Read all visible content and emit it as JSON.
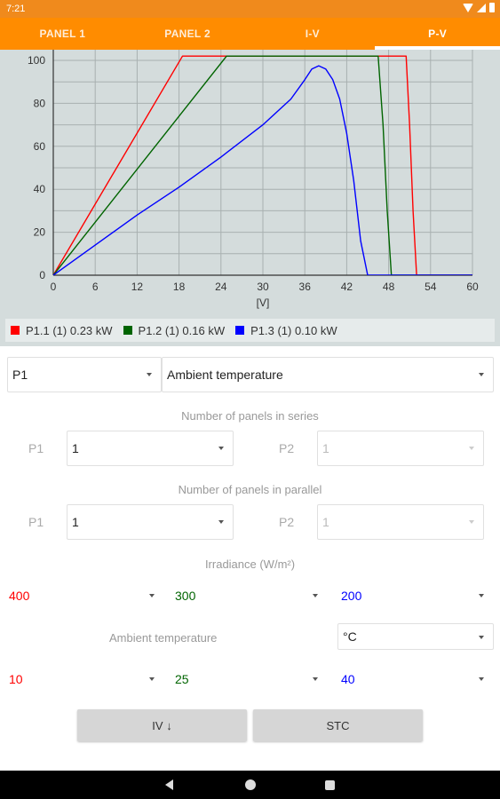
{
  "status": {
    "time": "7:21"
  },
  "tabs": [
    {
      "label": "PANEL 1"
    },
    {
      "label": "PANEL 2"
    },
    {
      "label": "I-V"
    },
    {
      "label": "P-V"
    }
  ],
  "active_tab": 3,
  "chart_data": {
    "type": "line",
    "xlabel": "[V]",
    "ylabel": "",
    "xlim": [
      0,
      60
    ],
    "ylim": [
      0,
      100
    ],
    "xticks": [
      "0",
      "6",
      "12",
      "18",
      "24",
      "30",
      "36",
      "42",
      "48",
      "54",
      "60"
    ],
    "yticks": [
      "0",
      "20",
      "40",
      "60",
      "80",
      "100"
    ],
    "grid": true,
    "legend_position": "bottom",
    "series": [
      {
        "name": "P1.1 (1) 0.23 kW",
        "color": "#ff0000",
        "x": [
          0,
          18.5,
          50.5,
          51.0,
          51.5,
          52.0,
          60
        ],
        "y": [
          0,
          102,
          102,
          70,
          30,
          0,
          0
        ]
      },
      {
        "name": "P1.2 (1) 0.16 kW",
        "color": "#006400",
        "x": [
          0,
          24.8,
          46.5,
          47.2,
          47.8,
          48.4,
          60
        ],
        "y": [
          0,
          102,
          102,
          70,
          30,
          0,
          0
        ]
      },
      {
        "name": "P1.3 (1) 0.10 kW",
        "color": "#0000ff",
        "x": [
          0,
          6,
          12,
          18,
          24,
          30,
          34,
          36,
          37,
          38,
          39,
          40,
          41,
          42,
          43,
          44,
          45,
          60
        ],
        "y": [
          0,
          14,
          28,
          41,
          55,
          70,
          82,
          91,
          96,
          97.5,
          96,
          91,
          82,
          66,
          44,
          16,
          0,
          0
        ]
      }
    ]
  },
  "legend": [
    {
      "label": "P1.1 (1) 0.23 kW",
      "color": "#ff0000"
    },
    {
      "label": "P1.2 (1) 0.16 kW",
      "color": "#006400"
    },
    {
      "label": "P1.3 (1) 0.10 kW",
      "color": "#0000ff"
    }
  ],
  "form": {
    "panel_select": "P1",
    "param_select": "Ambient temperature",
    "series_label": "Number of panels in series",
    "parallel_label": "Number of panels in parallel",
    "p1_label": "P1",
    "p2_label": "P2",
    "series_p1": "1",
    "series_p2": "1",
    "parallel_p1": "1",
    "parallel_p2": "1",
    "irradiance_label": "Irradiance (W/m²)",
    "irradiance": [
      {
        "value": "400",
        "color": "#ff0000"
      },
      {
        "value": "300",
        "color": "#006400"
      },
      {
        "value": "200",
        "color": "#0000ff"
      }
    ],
    "ambient_label": "Ambient temperature",
    "temp_unit": "°C",
    "temperature": [
      {
        "value": "10",
        "color": "#ff0000"
      },
      {
        "value": "25",
        "color": "#006400"
      },
      {
        "value": "40",
        "color": "#0000ff"
      }
    ],
    "iv_button": "IV ↓",
    "stc_button": "STC"
  },
  "colors": {
    "accent": "#ff8c00",
    "chart_bg": "#d4dcdc"
  }
}
